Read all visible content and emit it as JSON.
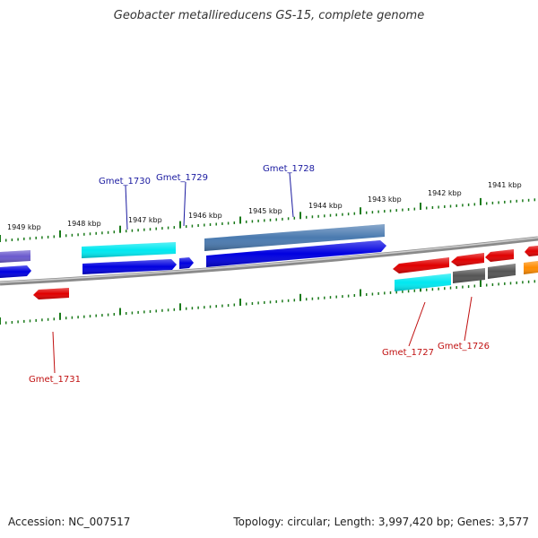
{
  "title": "Geobacter metallireducens GS-15, complete genome",
  "accession": "Accession: NC_007517",
  "summary": "Topology: circular; Length: 3,997,420 bp; Genes: 3,577",
  "colors": {
    "backbone": "#888888",
    "ticks": "#1a7a1a",
    "label_forward": "#1a1aa0",
    "label_reverse": "#c01010"
  },
  "kbp_labels": [
    {
      "text": "1949 kbp"
    },
    {
      "text": "1948 kbp"
    },
    {
      "text": "1947 kbp"
    },
    {
      "text": "1946 kbp"
    },
    {
      "text": "1945 kbp"
    },
    {
      "text": "1944 kbp"
    },
    {
      "text": "1943 kbp"
    },
    {
      "text": "1942 kbp"
    },
    {
      "text": "1941 kbp"
    }
  ],
  "gene_labels": [
    {
      "text": "Gmet_1730",
      "strand": "forward"
    },
    {
      "text": "Gmet_1729",
      "strand": "forward"
    },
    {
      "text": "Gmet_1728",
      "strand": "forward"
    },
    {
      "text": "Gmet_1727",
      "strand": "reverse"
    },
    {
      "text": "Gmet_1726",
      "strand": "reverse"
    },
    {
      "text": "Gmet_1731",
      "strand": "reverse"
    }
  ]
}
